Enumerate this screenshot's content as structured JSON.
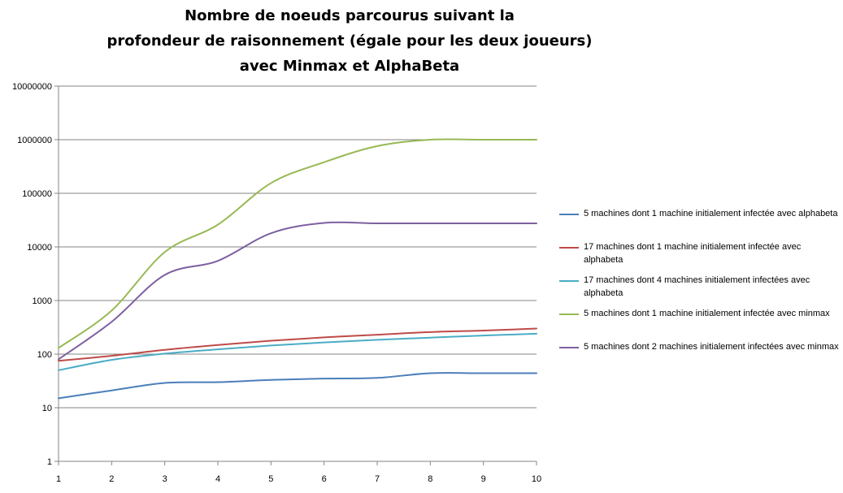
{
  "chart_data": {
    "type": "line",
    "title_lines": [
      "Nombre de noeuds parcourus suivant la",
      "profondeur de raisonnement (égale pour les deux joueurs)",
      "avec Minmax et AlphaBeta"
    ],
    "xlabel": "",
    "ylabel": "",
    "yscale": "log",
    "ylim": [
      1,
      10000000
    ],
    "yticks": [
      "1",
      "10",
      "100",
      "1000",
      "10000",
      "100000",
      "1000000",
      "10000000"
    ],
    "x": [
      1,
      2,
      3,
      4,
      5,
      6,
      7,
      8,
      9,
      10
    ],
    "xticks": [
      "1",
      "2",
      "3",
      "4",
      "5",
      "6",
      "7",
      "8",
      "9",
      "10"
    ],
    "grid": true,
    "legend_position": "right",
    "series": [
      {
        "name": "5 machines dont 1 machine initialement infectée avec alphabeta",
        "color": "#4a7ebb",
        "values": [
          15,
          21,
          29,
          30,
          33,
          35,
          36,
          44,
          44,
          44
        ]
      },
      {
        "name": "17 machines dont 1 machine initialement infectée avec alphabeta",
        "color": "#be4b48",
        "values": [
          75,
          93,
          120,
          148,
          178,
          205,
          230,
          258,
          275,
          300
        ]
      },
      {
        "name": "17 machines dont 4 machines initialement infectées avec alphabeta",
        "color": "#4bacc6",
        "values": [
          50,
          78,
          102,
          123,
          145,
          165,
          185,
          203,
          222,
          240
        ]
      },
      {
        "name": "5 machines dont 1 machine initialement infectée avec minmax",
        "color": "#98b954",
        "values": [
          130,
          650,
          8000,
          26000,
          155000,
          380000,
          760000,
          1000000,
          1000000,
          1000000
        ]
      },
      {
        "name": "5 machines dont 2 machines initialement infectées avec minmax",
        "color": "#7d60a0",
        "values": [
          80,
          400,
          3000,
          5500,
          18000,
          28000,
          27500,
          27500,
          27500,
          27500
        ]
      }
    ]
  }
}
